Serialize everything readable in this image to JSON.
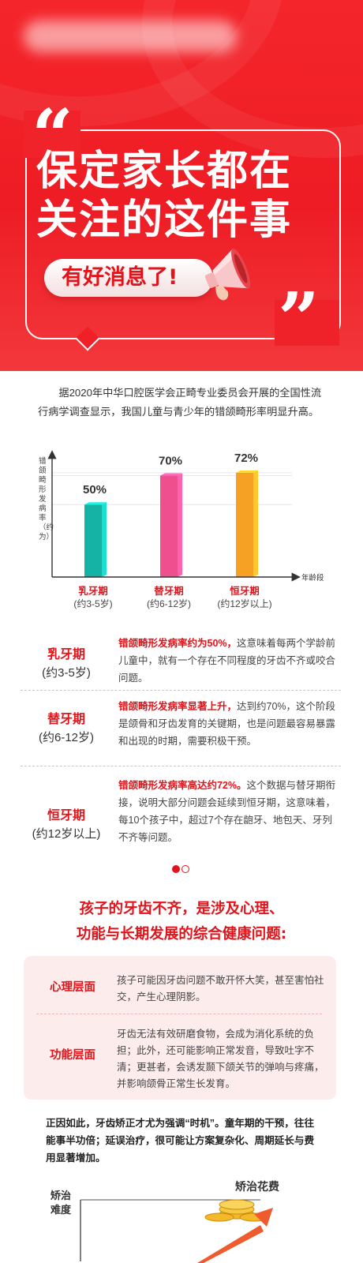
{
  "hero": {
    "title_line1": "保定家长都在",
    "title_line2": "关注的这件事",
    "pill_text": "有好消息了!",
    "open_quote": "“",
    "close_quote": "”",
    "bg_color": "#ee1c24",
    "icon": "megaphone-icon"
  },
  "intro": {
    "text": "据2020年中华口腔医学会正畸专业委员会开展的全国性流行病学调查显示，我国儿童与青少年的错颌畸形率明显升高。"
  },
  "chart_data": {
    "type": "bar",
    "ylabel": "错颌畸形发病率（约为）",
    "xlabel": "年龄段",
    "categories": [
      "乳牙期",
      "替牙期",
      "恒牙期"
    ],
    "category_ages": [
      "(约3-5岁)",
      "(约6-12岁)",
      "(约12岁以上)"
    ],
    "values": [
      50,
      70,
      72
    ],
    "value_labels": [
      "50%",
      "70%",
      "72%"
    ],
    "bar_colors": [
      "#14b3a6",
      "#ef4f8c",
      "#f7a124"
    ],
    "ylim": [
      0,
      85
    ],
    "grid": true
  },
  "phases": [
    {
      "name": "乳牙期",
      "age": "(约3-5岁)",
      "highlight": "错颌畸形发病率约为50%，",
      "text": "这意味着每两个学龄前儿童中，就有一个存在不同程度的牙齿不齐或咬合问题。"
    },
    {
      "name": "替牙期",
      "age": "(约6-12岁)",
      "highlight": "错颌畸形发病率显著上升，",
      "text": "达到约70%，这个阶段是颌骨和牙齿发育的关键期，也是问题最容易暴露和出现的时期，需要积极干预。"
    },
    {
      "name": "恒牙期",
      "age": "(约12岁以上)",
      "highlight": "错颌畸形发病率高达约72%。",
      "text": "这个数据与替牙期衔接，说明大部分问题会延续到恒牙期，这意味着，每10个孩子中，超过7个存在龅牙、地包天、牙列不齐等问题。"
    }
  ],
  "carousel": {
    "active_color": "#e2141b",
    "inactive_color": "#ffffff"
  },
  "section2": {
    "title_line1": "孩子的牙齿不齐，是涉及心理、",
    "title_line2": "功能与长期发展的综合健康问题:",
    "levels": [
      {
        "label": "心理层面",
        "text": "孩子可能因牙齿问题不敢开怀大笑，甚至害怕社交，产生心理阴影。"
      },
      {
        "label": "功能层面",
        "text": "牙齿无法有效研磨食物，会成为消化系统的负担；此外，还可能影响正常发音，导致吐字不清；更甚者，会诱发颞下颌关节的弹响与疼痛，并影响颌骨正常生长发育。"
      }
    ]
  },
  "summary": {
    "text": "正因如此，牙齿矫正才尤为强调“时机”。童年期的干预，往往能事半功倍；延误治疗，很可能让方案复杂化、周期延长与费用显著增加。"
  },
  "bottom": {
    "label_left_1": "矫治",
    "label_left_2": "难度",
    "label_right": "矫治花费",
    "icons": [
      "coin-stack-icon",
      "rising-arrow-icon"
    ]
  }
}
